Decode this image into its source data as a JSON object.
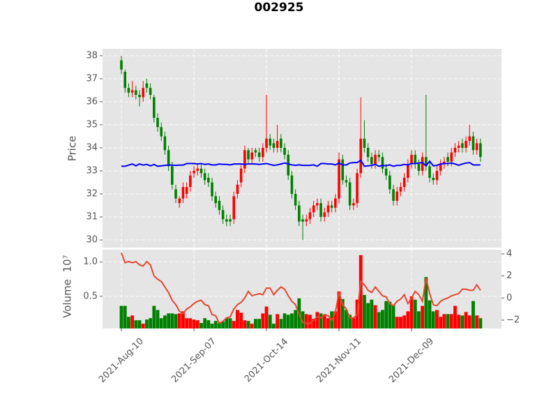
{
  "chart_data": {
    "type": "candlestick",
    "title": "002925",
    "ylabel": "Price",
    "categories": [
      "2021-Aug-10",
      null,
      null,
      null,
      null,
      null,
      null,
      null,
      null,
      null,
      null,
      null,
      null,
      null,
      null,
      null,
      null,
      null,
      null,
      null,
      "2021-Sep-07",
      null,
      null,
      null,
      null,
      null,
      null,
      null,
      null,
      null,
      null,
      null,
      null,
      null,
      null,
      null,
      null,
      null,
      null,
      null,
      "2021-Oct-14",
      null,
      null,
      null,
      null,
      null,
      null,
      null,
      null,
      null,
      null,
      null,
      null,
      null,
      null,
      null,
      null,
      null,
      null,
      null,
      "2021-Nov-11",
      null,
      null,
      null,
      null,
      null,
      null,
      null,
      null,
      null,
      null,
      null,
      null,
      null,
      null,
      null,
      null,
      null,
      null,
      null,
      "2021-Dec-09",
      null,
      null,
      null,
      null,
      null,
      null,
      null,
      null,
      null,
      null,
      null,
      null,
      null,
      null,
      null,
      null,
      null,
      null,
      null
    ],
    "open": [
      37.8,
      37.3,
      36.6,
      36.4,
      36.5,
      36.3,
      36.2,
      36.8,
      36.6,
      36.2,
      35.3,
      34.9,
      34.5,
      33.9,
      33.2,
      32.2,
      31.6,
      31.8,
      32.0,
      32.3,
      32.9,
      33.0,
      33.1,
      32.9,
      32.7,
      32.5,
      31.9,
      31.7,
      31.3,
      30.9,
      30.9,
      30.9,
      32.0,
      32.5,
      33.1,
      33.9,
      33.5,
      33.9,
      33.8,
      33.6,
      34.0,
      34.4,
      34.2,
      34.0,
      34.4,
      34.0,
      33.7,
      32.8,
      32.0,
      31.5,
      30.9,
      30.8,
      30.9,
      31.2,
      31.5,
      31.6,
      31.0,
      31.2,
      31.5,
      31.4,
      31.8,
      33.5,
      32.6,
      32.5,
      31.5,
      31.6,
      32.9,
      34.4,
      34.0,
      33.6,
      33.3,
      33.7,
      33.6,
      33.1,
      32.8,
      32.2,
      31.7,
      32.1,
      32.3,
      32.7,
      33.3,
      33.7,
      33.3,
      33.0,
      33.6,
      33.2,
      32.7,
      32.6,
      33.0,
      33.3,
      33.6,
      33.4,
      33.8,
      34.0,
      34.2,
      34.0,
      34.3,
      34.5,
      33.9,
      34.2
    ],
    "high": [
      38.0,
      37.4,
      36.8,
      36.9,
      36.7,
      36.5,
      36.9,
      37.0,
      36.8,
      36.3,
      35.5,
      35.1,
      34.7,
      34.1,
      33.4,
      32.4,
      31.9,
      32.5,
      32.5,
      33.0,
      33.2,
      33.3,
      33.3,
      33.1,
      32.9,
      32.7,
      32.1,
      31.9,
      31.5,
      31.1,
      31.1,
      32.1,
      32.6,
      33.3,
      34.1,
      34.0,
      34.0,
      34.0,
      34.0,
      34.2,
      36.3,
      34.6,
      34.4,
      35.0,
      34.6,
      34.2,
      33.9,
      33.0,
      32.2,
      31.7,
      31.1,
      31.1,
      31.4,
      31.7,
      31.8,
      31.8,
      31.4,
      31.7,
      31.7,
      32.0,
      33.8,
      33.7,
      32.8,
      32.7,
      31.8,
      33.1,
      36.2,
      35.2,
      34.2,
      33.8,
      33.9,
      33.9,
      33.8,
      33.3,
      33.0,
      32.4,
      32.3,
      32.5,
      32.9,
      33.5,
      33.9,
      33.9,
      33.5,
      33.8,
      36.3,
      33.4,
      32.9,
      33.2,
      33.5,
      33.6,
      33.8,
      34.0,
      34.2,
      34.3,
      34.4,
      34.5,
      35.0,
      34.7,
      34.4,
      34.4
    ],
    "low": [
      37.2,
      36.4,
      36.2,
      36.2,
      36.1,
      35.8,
      36.0,
      36.4,
      36.1,
      35.1,
      34.7,
      34.3,
      33.7,
      33.0,
      32.2,
      31.6,
      31.4,
      31.6,
      31.8,
      32.1,
      32.7,
      32.8,
      32.7,
      32.4,
      32.3,
      31.7,
      31.4,
      31.1,
      30.7,
      30.6,
      30.6,
      30.7,
      31.8,
      32.3,
      32.9,
      33.3,
      33.3,
      33.6,
      33.4,
      33.4,
      33.8,
      33.9,
      33.8,
      33.8,
      33.8,
      33.5,
      32.6,
      31.8,
      31.3,
      30.6,
      30.0,
      30.6,
      30.7,
      31.0,
      31.3,
      30.8,
      30.8,
      31.0,
      31.2,
      31.2,
      31.6,
      32.4,
      32.3,
      31.3,
      31.3,
      31.4,
      32.7,
      33.8,
      33.4,
      33.1,
      33.1,
      33.4,
      32.9,
      32.6,
      32.0,
      31.5,
      31.5,
      31.9,
      32.1,
      32.5,
      33.1,
      33.1,
      32.8,
      32.8,
      33.0,
      32.5,
      32.4,
      32.4,
      32.8,
      33.1,
      33.2,
      33.2,
      33.6,
      33.8,
      33.8,
      33.8,
      34.1,
      33.7,
      33.7,
      33.4
    ],
    "close": [
      37.4,
      36.6,
      36.4,
      36.5,
      36.3,
      36.2,
      36.6,
      36.6,
      36.3,
      35.3,
      34.9,
      34.5,
      33.9,
      33.2,
      32.4,
      31.8,
      31.8,
      32.3,
      32.3,
      32.8,
      33.0,
      33.1,
      32.9,
      32.6,
      32.5,
      31.9,
      31.6,
      31.3,
      30.9,
      30.8,
      30.8,
      31.9,
      32.4,
      33.1,
      33.9,
      33.5,
      33.8,
      33.8,
      33.6,
      34.0,
      34.4,
      34.1,
      34.0,
      34.3,
      34.0,
      33.7,
      32.8,
      32.0,
      31.5,
      30.8,
      30.8,
      30.9,
      31.2,
      31.5,
      31.6,
      31.0,
      31.2,
      31.5,
      31.4,
      31.8,
      33.5,
      32.6,
      32.5,
      31.5,
      31.6,
      32.9,
      34.4,
      34.0,
      33.6,
      33.3,
      33.7,
      33.6,
      33.1,
      32.8,
      32.2,
      31.7,
      32.1,
      32.3,
      32.7,
      33.3,
      33.7,
      33.3,
      33.0,
      33.6,
      33.2,
      32.7,
      32.6,
      33.0,
      33.3,
      33.4,
      33.4,
      33.8,
      34.0,
      34.1,
      34.0,
      34.3,
      34.5,
      33.9,
      34.2,
      33.6
    ],
    "up_color": "#ff0000",
    "down_color": "#008000",
    "ylim": [
      29.67,
      38.3
    ],
    "yticks": [
      30,
      31,
      32,
      33,
      34,
      35,
      36,
      37,
      38
    ],
    "grid": true,
    "overlay": {
      "color": "#0000ff",
      "values": [
        33.2,
        33.2,
        33.25,
        33.3,
        33.22,
        33.3,
        33.25,
        33.28,
        33.22,
        33.28,
        33.2,
        33.22,
        33.24,
        33.25,
        33.25,
        33.24,
        33.25,
        33.25,
        33.32,
        33.32,
        33.32,
        33.3,
        33.32,
        33.28,
        33.3,
        33.26,
        33.26,
        33.3,
        33.28,
        33.28,
        33.26,
        33.3,
        33.3,
        33.3,
        33.28,
        33.3,
        33.3,
        33.3,
        33.28,
        33.3,
        33.32,
        33.28,
        33.24,
        33.26,
        33.3,
        33.34,
        33.3,
        33.26,
        33.24,
        33.26,
        33.24,
        33.24,
        33.24,
        33.26,
        33.2,
        33.32,
        33.32,
        33.3,
        33.3,
        33.26,
        33.34,
        33.26,
        33.26,
        33.34,
        33.36,
        33.36,
        33.46,
        33.2,
        33.22,
        33.24,
        33.28,
        33.2,
        33.24,
        33.22,
        33.26,
        33.2,
        33.24,
        33.24,
        33.28,
        33.26,
        33.32,
        33.32,
        33.34,
        33.36,
        33.22,
        33.42,
        33.22,
        33.24,
        33.3,
        33.32,
        33.32,
        33.34,
        33.3,
        33.24,
        33.3,
        33.34,
        33.36,
        33.26,
        33.26,
        33.26
      ]
    },
    "volume": {
      "ylabel": "Volume",
      "offset_label": "10⁷",
      "values": [
        0.36,
        0.36,
        0.2,
        0.22,
        0.15,
        0.15,
        0.1,
        0.16,
        0.18,
        0.36,
        0.3,
        0.18,
        0.22,
        0.25,
        0.25,
        0.24,
        0.25,
        0.28,
        0.18,
        0.18,
        0.16,
        0.15,
        0.11,
        0.18,
        0.15,
        0.1,
        0.14,
        0.11,
        0.13,
        0.18,
        0.18,
        0.14,
        0.3,
        0.26,
        0.15,
        0.14,
        0.1,
        0.17,
        0.17,
        0.25,
        0.35,
        0.23,
        0.1,
        0.24,
        0.17,
        0.25,
        0.23,
        0.25,
        0.3,
        0.47,
        0.28,
        0.24,
        0.23,
        0.17,
        0.27,
        0.25,
        0.22,
        0.18,
        0.28,
        0.28,
        0.57,
        0.46,
        0.3,
        0.23,
        0.18,
        0.45,
        1.1,
        0.52,
        0.4,
        0.45,
        0.37,
        0.27,
        0.3,
        0.43,
        0.42,
        0.37,
        0.2,
        0.2,
        0.22,
        0.28,
        0.5,
        0.45,
        0.28,
        0.36,
        0.78,
        0.44,
        0.28,
        0.3,
        0.2,
        0.24,
        0.24,
        0.24,
        0.36,
        0.23,
        0.22,
        0.27,
        0.22,
        0.43,
        0.22,
        0.18
      ],
      "ylim": [
        0.03,
        1.18
      ],
      "yticks": [
        0.5,
        {
          "value": 1,
          "label": "1.0"
        }
      ],
      "y2lim": [
        -2.76,
        4.38
      ],
      "y2ticks": [
        {
          "value": -2,
          "label": "−2"
        },
        0,
        2,
        4
      ],
      "series": [
        {
          "color": "#e5472d",
          "axis": "y2",
          "values": [
            4.1,
            3.2,
            3.3,
            3.2,
            3.3,
            3.0,
            2.9,
            3.3,
            3.0,
            2.0,
            1.7,
            1.5,
            1.0,
            0.5,
            -0.2,
            -0.6,
            -1.2,
            -1.4,
            -1.0,
            -0.8,
            -0.5,
            -0.3,
            -0.2,
            -0.6,
            -0.7,
            -1.5,
            -1.6,
            -2.3,
            -2.1,
            -1.8,
            -1.7,
            -1.0,
            -0.6,
            -0.4,
            0.0,
            0.6,
            0.2,
            0.3,
            0.4,
            0.3,
            0.9,
            0.9,
            0.3,
            0.7,
            1.0,
            0.8,
            0.2,
            -0.3,
            -0.6,
            -1.5,
            -2.2,
            -2.3,
            -2.3,
            -2.0,
            -1.7,
            -1.8,
            -1.5,
            -1.6,
            -2.0,
            -1.3,
            0.5,
            -0.6,
            -1.0,
            -1.8,
            -1.8,
            -1.5,
            1.5,
            1.2,
            0.7,
            0.5,
            1.0,
            0.6,
            0.2,
            0.1,
            -0.5,
            -0.7,
            -0.3,
            -0.1,
            0.3,
            -0.5,
            0.0,
            0.6,
            0.3,
            -0.3,
            1.8,
            0.4,
            -0.6,
            -0.7,
            -0.3,
            -0.1,
            0.0,
            0.2,
            0.3,
            0.4,
            0.8,
            0.8,
            0.7,
            0.7,
            1.2,
            0.7
          ]
        }
      ]
    }
  }
}
